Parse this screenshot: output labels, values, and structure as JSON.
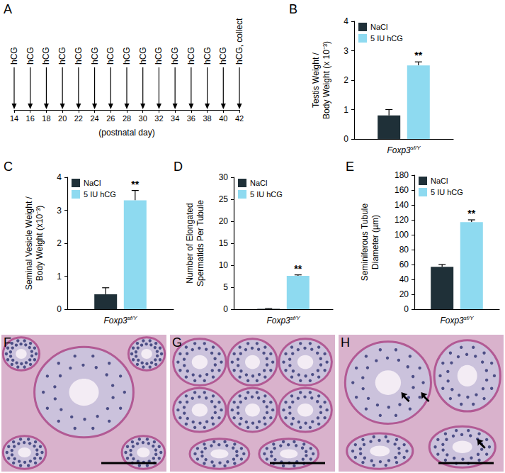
{
  "chart_data": [
    {
      "type": "timeline",
      "title": "A",
      "x": [
        14,
        16,
        18,
        20,
        22,
        24,
        26,
        28,
        30,
        32,
        34,
        36,
        38,
        40,
        42
      ],
      "labels": [
        "hCG",
        "hCG",
        "hCG",
        "hCG",
        "hCG",
        "hCG",
        "hCG",
        "hCG",
        "hCG",
        "hCG",
        "hCG",
        "hCG",
        "hCG",
        "hCG",
        "hCG, collect"
      ],
      "xlabel": "(postnatal day)",
      "xlim": [
        14,
        42
      ],
      "xticks": [
        14,
        16,
        18,
        20,
        22,
        24,
        26,
        28,
        30,
        32,
        34,
        36,
        38,
        40,
        42
      ]
    },
    {
      "type": "bar",
      "title": "B",
      "categories": [
        "Foxp3sf/Y"
      ],
      "ylabel": "Testis Weight /\nBody Weight (x 10⁻³)",
      "series": [
        {
          "name": "NaCl",
          "color": "#1f3038",
          "values": [
            0.8
          ],
          "errors": [
            0.2
          ]
        },
        {
          "name": "5 IU hCG",
          "color": "#8edaf0",
          "values": [
            2.5
          ],
          "errors": [
            0.12
          ]
        }
      ],
      "annotations": [
        {
          "text": "**",
          "series": "5 IU hCG",
          "category": "Foxp3sf/Y"
        }
      ],
      "ylim": [
        0,
        4
      ],
      "yticks": [
        0,
        1,
        2,
        3,
        4
      ],
      "grid": false,
      "legend": "upper left"
    },
    {
      "type": "bar",
      "title": "C",
      "categories": [
        "Foxp3sf/Y"
      ],
      "ylabel": "Seminal Vesicle Weight /\nBody Weight (x10⁻³)",
      "series": [
        {
          "name": "NaCl",
          "color": "#1f3038",
          "values": [
            0.45
          ],
          "errors": [
            0.2
          ]
        },
        {
          "name": "5 IU hCG",
          "color": "#8edaf0",
          "values": [
            3.3
          ],
          "errors": [
            0.3
          ]
        }
      ],
      "annotations": [
        {
          "text": "**",
          "series": "5 IU hCG",
          "category": "Foxp3sf/Y"
        }
      ],
      "ylim": [
        0,
        4
      ],
      "yticks": [
        0,
        1,
        2,
        3,
        4
      ],
      "grid": false,
      "legend": "upper left"
    },
    {
      "type": "bar",
      "title": "D",
      "categories": [
        "Foxp3sf/Y"
      ],
      "ylabel": "Number of Elongated\nSpermatids Per Tubule",
      "series": [
        {
          "name": "NaCl",
          "color": "#1f3038",
          "values": [
            0.1
          ],
          "errors": [
            0.05
          ]
        },
        {
          "name": "5 IU hCG",
          "color": "#8edaf0",
          "values": [
            7.6
          ],
          "errors": [
            0.2
          ]
        }
      ],
      "annotations": [
        {
          "text": "**",
          "series": "5 IU hCG",
          "category": "Foxp3sf/Y"
        }
      ],
      "ylim": [
        0,
        30
      ],
      "yticks": [
        0,
        5,
        10,
        15,
        20,
        25,
        30
      ],
      "grid": false,
      "legend": "upper left"
    },
    {
      "type": "bar",
      "title": "E",
      "categories": [
        "Foxp3sf/Y"
      ],
      "ylabel": "Seminiferous Tubule\nDiameter (µm)",
      "series": [
        {
          "name": "NaCl",
          "color": "#1f3038",
          "values": [
            57
          ],
          "errors": [
            3
          ]
        },
        {
          "name": "5 IU hCG",
          "color": "#8edaf0",
          "values": [
            117
          ],
          "errors": [
            3
          ]
        }
      ],
      "annotations": [
        {
          "text": "**",
          "series": "5 IU hCG",
          "category": "Foxp3sf/Y"
        }
      ],
      "ylim": [
        0,
        180
      ],
      "yticks": [
        0,
        20,
        40,
        60,
        80,
        100,
        120,
        140,
        160,
        180
      ],
      "grid": false,
      "legend": "upper left"
    }
  ],
  "images": [
    {
      "title": "F"
    },
    {
      "title": "G"
    },
    {
      "title": "H"
    }
  ]
}
